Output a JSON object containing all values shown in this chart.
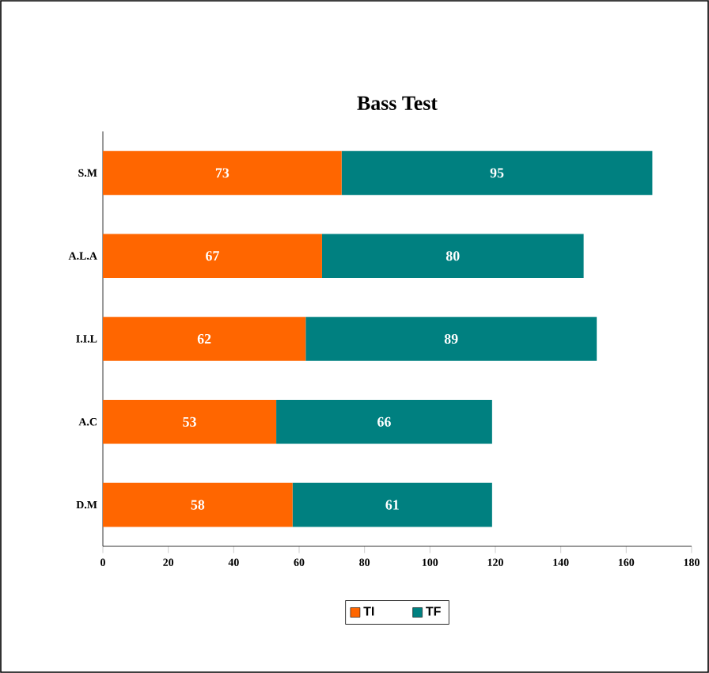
{
  "chart_data": {
    "type": "bar",
    "title": "Bass Test",
    "orientation": "horizontal",
    "stacked": true,
    "categories": [
      "S.M",
      "A.L.A",
      "I.I.L",
      "A.C",
      "D.M"
    ],
    "series": [
      {
        "name": "TI",
        "color": "#ff6600",
        "values": [
          73,
          67,
          62,
          53,
          58
        ]
      },
      {
        "name": "TF",
        "color": "#008080",
        "values": [
          95,
          80,
          89,
          66,
          61
        ]
      }
    ],
    "xlim": [
      0,
      180
    ],
    "xticks": [
      0,
      20,
      40,
      60,
      80,
      100,
      120,
      140,
      160,
      180
    ],
    "data_labels": true,
    "legend": "bottom"
  }
}
